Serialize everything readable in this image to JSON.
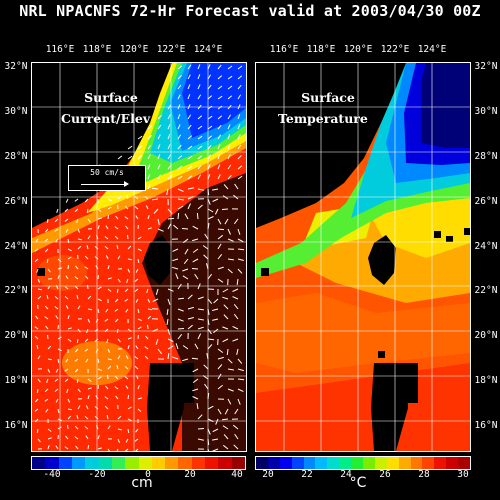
{
  "title": "NRL NPACNFS 72-Hr Forecast valid at 2003/04/30 00Z",
  "longitude_labels": [
    "116°E",
    "118°E",
    "120°E",
    "122°E",
    "124°E"
  ],
  "latitude_labels": [
    "32°N",
    "30°N",
    "28°N",
    "26°N",
    "24°N",
    "22°N",
    "20°N",
    "18°N",
    "16°N"
  ],
  "panels": {
    "left": {
      "title_line1": "Surface",
      "title_line2": "Current/Elev",
      "reference_vector": "50 cm/s"
    },
    "right": {
      "title_line1": "Surface",
      "title_line2": "Temperature"
    }
  },
  "colorbars": {
    "elevation": {
      "ticks": [
        "-40",
        "-20",
        "0",
        "20",
        "40"
      ],
      "unit": "cm",
      "colors": [
        "#000088",
        "#0000cc",
        "#0044ff",
        "#0099ff",
        "#00ccdd",
        "#00ddaa",
        "#33ee55",
        "#99ee00",
        "#ddee00",
        "#ffcc00",
        "#ff9900",
        "#ff6600",
        "#ff3300",
        "#ee1100",
        "#cc0000",
        "#990000"
      ]
    },
    "temperature": {
      "ticks": [
        "20",
        "22",
        "24",
        "26",
        "28",
        "30"
      ],
      "unit": "°C",
      "colors": [
        "#000066",
        "#0000aa",
        "#0000ee",
        "#0044ff",
        "#0088ff",
        "#00bbff",
        "#00ddcc",
        "#00ee88",
        "#22ee33",
        "#77ee00",
        "#ccee00",
        "#ffdd00",
        "#ffaa00",
        "#ff7700",
        "#ff4400",
        "#ee1100",
        "#cc0000",
        "#aa0000"
      ]
    }
  },
  "colors": {
    "land": "#000000",
    "deep_ocean": "#3a0a00",
    "grid": "#ffffff"
  }
}
